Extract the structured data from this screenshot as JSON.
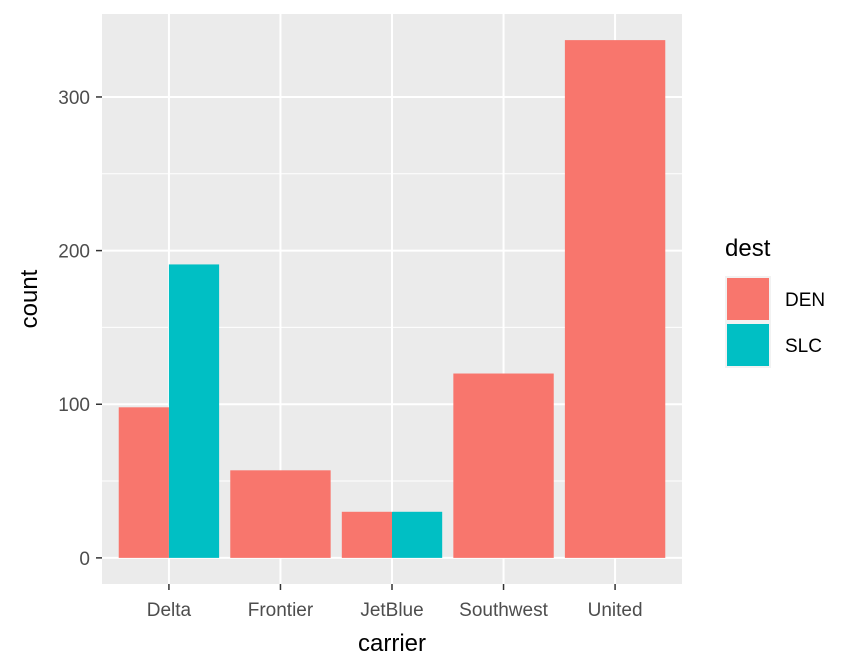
{
  "chart_data": {
    "type": "bar",
    "position": "dodge",
    "xlabel": "carrier",
    "ylabel": "count",
    "categories": [
      "Delta",
      "Frontier",
      "JetBlue",
      "Southwest",
      "United"
    ],
    "series": [
      {
        "name": "DEN",
        "color": "#F8766D",
        "values": [
          98,
          57,
          30,
          120,
          337
        ]
      },
      {
        "name": "SLC",
        "color": "#00BFC4",
        "values": [
          191,
          null,
          30,
          null,
          null
        ]
      }
    ],
    "ylim": [
      -17,
      354
    ],
    "yticks": [
      0,
      100,
      200,
      300
    ],
    "yticks_minor": [
      50,
      150,
      250
    ],
    "grid": true,
    "legend": {
      "title": "dest",
      "placement": "right"
    },
    "panel_background": "#EBEBEB",
    "grid_color": "#FFFFFF"
  }
}
